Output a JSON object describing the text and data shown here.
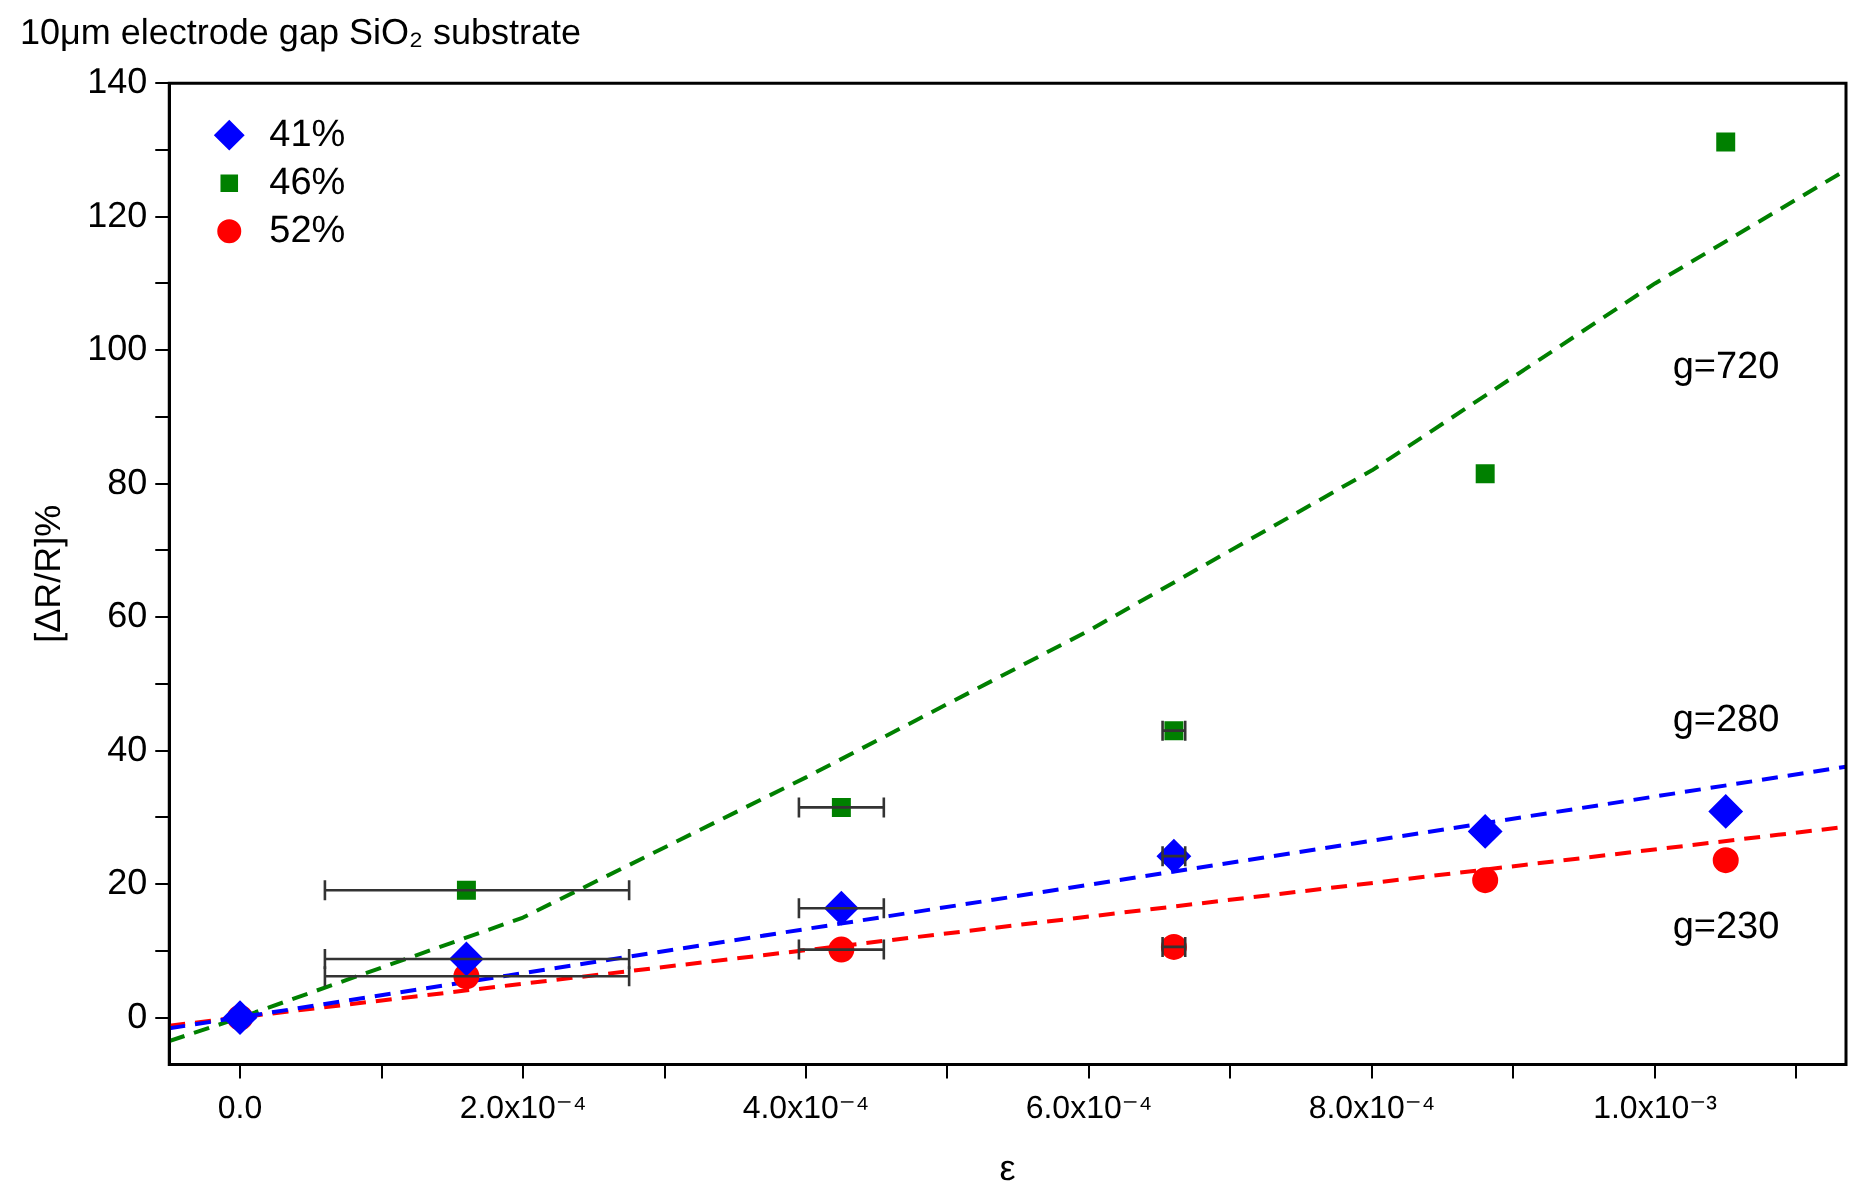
{
  "chart_data": {
    "type": "scatter",
    "title": "10μm electrode gap SiO₂ substrate",
    "xlabel": "ε",
    "ylabel": "[ΔR/R]%",
    "xlim": [
      -5e-05,
      0.001135
    ],
    "ylim": [
      -7,
      140
    ],
    "xticks": [
      {
        "value": 0,
        "label": "0.0"
      },
      {
        "value": 0.0001,
        "label": null
      },
      {
        "value": 0.0002,
        "label": "2.0x10⁻⁴"
      },
      {
        "value": 0.0003,
        "label": null
      },
      {
        "value": 0.0004,
        "label": "4.0x10⁻⁴"
      },
      {
        "value": 0.0005,
        "label": null
      },
      {
        "value": 0.0006,
        "label": "6.0x10⁻⁴"
      },
      {
        "value": 0.0007,
        "label": null
      },
      {
        "value": 0.0008,
        "label": "8.0x10⁻⁴"
      },
      {
        "value": 0.0009,
        "label": null
      },
      {
        "value": 0.001,
        "label": "1.0x10⁻³"
      },
      {
        "value": 0.0011,
        "label": null
      }
    ],
    "yticks": [
      0,
      {
        "value": 10,
        "label": null
      },
      20,
      {
        "value": 30,
        "label": null
      },
      40,
      {
        "value": 50,
        "label": null
      },
      60,
      {
        "value": 70,
        "label": null
      },
      80,
      {
        "value": 90,
        "label": null
      },
      100,
      {
        "value": 110,
        "label": null
      },
      120,
      {
        "value": 130,
        "label": null
      },
      140
    ],
    "grid": false,
    "legend": "top left",
    "x": [
      0,
      0.00016,
      0.000425,
      0.00066,
      0.00088,
      0.00105
    ],
    "series": [
      {
        "name": "41%",
        "color": "#0000ff",
        "marker": "diamond",
        "values": [
          0,
          8.8,
          16.4,
          24.2,
          27.9,
          30.9
        ],
        "xerrors": [
          null,
          [
            6e-05,
            0.000275
          ],
          [
            0.000395,
            0.000455
          ],
          [
            0.000652,
            0.000668
          ],
          null,
          null
        ]
      },
      {
        "name": "46%",
        "color": "#008000",
        "marker": "square",
        "values": [
          null,
          19.1,
          31.5,
          43,
          81.5,
          131.2
        ],
        "xerrors": [
          null,
          [
            6e-05,
            0.000275
          ],
          [
            0.000395,
            0.000455
          ],
          [
            0.000652,
            0.000668
          ],
          null,
          null
        ]
      },
      {
        "name": "52%",
        "color": "#ff0000",
        "marker": "circle",
        "values": [
          0,
          6.2,
          10.2,
          10.6,
          20.6,
          23.6
        ],
        "xerrors": [
          null,
          [
            6e-05,
            0.000275
          ],
          [
            0.000395,
            0.000455
          ],
          [
            0.000652,
            0.000668
          ],
          null,
          null
        ]
      },
      {
        "type": "line",
        "color": "#0000ff",
        "marker": "none",
        "line_style": "dashed",
        "x": [
          -5e-05,
          0.001135
        ],
        "values": [
          -1.6,
          37.6
        ]
      },
      {
        "type": "line",
        "color": "#008000",
        "marker": "none",
        "line_style": "dashed",
        "x": [
          -5e-05,
          0,
          0.0002,
          0.0004,
          0.0006,
          0.0008,
          0.001,
          0.001135
        ],
        "values": [
          -3.5,
          0,
          15,
          36,
          58,
          82,
          110,
          127
        ]
      },
      {
        "type": "line",
        "color": "#ff0000",
        "marker": "none",
        "line_style": "dashed",
        "x": [
          -5e-05,
          0.001135
        ],
        "values": [
          -1.2,
          28.6
        ]
      }
    ],
    "annotations": [
      "g=720",
      "g=280",
      "g=230"
    ]
  }
}
